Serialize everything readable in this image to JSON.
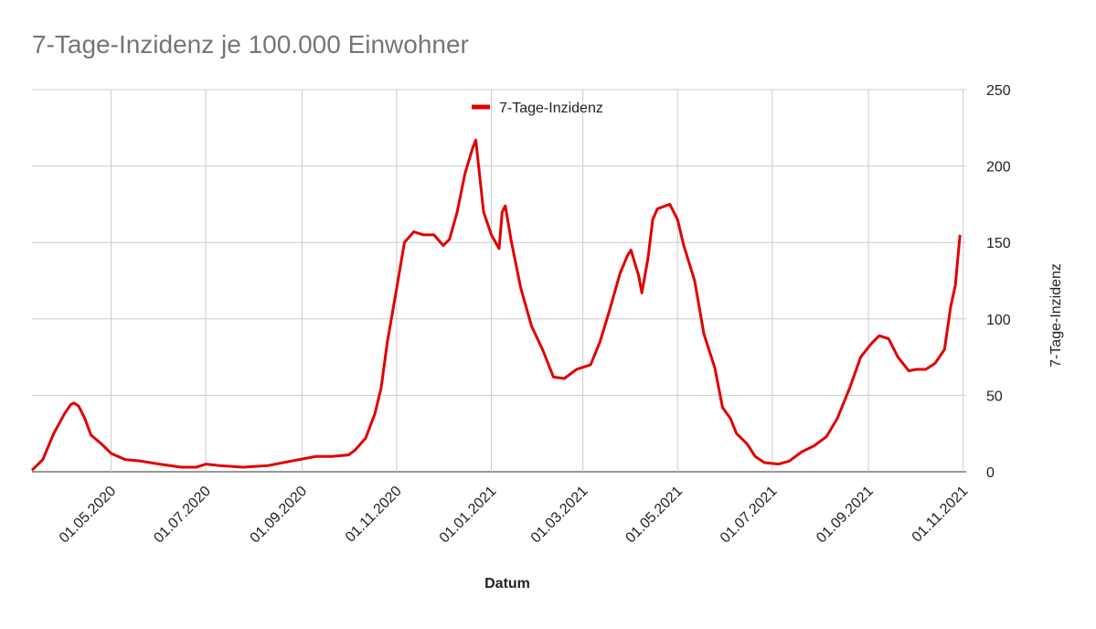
{
  "chart_data": {
    "type": "line",
    "title": "7-Tage-Inzidenz je 100.000 Einwohner",
    "x_label": "Datum",
    "y_label": "7-Tage-Inzidenz",
    "x": [
      "2020-03-11",
      "2020-03-18",
      "2020-03-25",
      "2020-04-01",
      "2020-04-05",
      "2020-04-07",
      "2020-04-10",
      "2020-04-14",
      "2020-04-18",
      "2020-04-25",
      "2020-05-01",
      "2020-05-10",
      "2020-05-20",
      "2020-06-01",
      "2020-06-15",
      "2020-06-25",
      "2020-07-01",
      "2020-07-10",
      "2020-07-25",
      "2020-08-10",
      "2020-08-25",
      "2020-09-10",
      "2020-09-20",
      "2020-10-01",
      "2020-10-05",
      "2020-10-12",
      "2020-10-18",
      "2020-10-22",
      "2020-10-26",
      "2020-11-01",
      "2020-11-06",
      "2020-11-12",
      "2020-11-18",
      "2020-11-25",
      "2020-12-01",
      "2020-12-05",
      "2020-12-10",
      "2020-12-15",
      "2020-12-20",
      "2020-12-22",
      "2020-12-27",
      "2021-01-01",
      "2021-01-06",
      "2021-01-08",
      "2021-01-10",
      "2021-01-14",
      "2021-01-20",
      "2021-01-27",
      "2021-02-03",
      "2021-02-10",
      "2021-02-17",
      "2021-02-25",
      "2021-03-06",
      "2021-03-12",
      "2021-03-18",
      "2021-03-25",
      "2021-03-30",
      "2021-04-01",
      "2021-04-06",
      "2021-04-08",
      "2021-04-12",
      "2021-04-15",
      "2021-04-18",
      "2021-04-26",
      "2021-05-01",
      "2021-05-05",
      "2021-05-12",
      "2021-05-18",
      "2021-05-25",
      "2021-05-30",
      "2021-06-04",
      "2021-06-08",
      "2021-06-15",
      "2021-06-20",
      "2021-06-26",
      "2021-07-05",
      "2021-07-12",
      "2021-07-20",
      "2021-07-28",
      "2021-08-05",
      "2021-08-12",
      "2021-08-20",
      "2021-08-27",
      "2021-09-03",
      "2021-09-08",
      "2021-09-14",
      "2021-09-20",
      "2021-09-27",
      "2021-10-02",
      "2021-10-08",
      "2021-10-14",
      "2021-10-20",
      "2021-10-24",
      "2021-10-27",
      "2021-10-30"
    ],
    "series": [
      {
        "name": "7-Tage-Inzidenz",
        "color": "#e00000",
        "values": [
          1,
          8,
          25,
          38,
          44,
          45,
          43,
          35,
          24,
          18,
          12,
          8,
          7,
          5,
          3,
          3,
          5,
          4,
          3,
          4,
          7,
          10,
          10,
          11,
          14,
          22,
          38,
          55,
          85,
          120,
          150,
          157,
          155,
          155,
          148,
          152,
          170,
          195,
          212,
          217,
          170,
          155,
          146,
          170,
          174,
          150,
          120,
          95,
          80,
          62,
          61,
          67,
          70,
          85,
          105,
          130,
          142,
          145,
          128,
          117,
          140,
          165,
          172,
          175,
          165,
          148,
          125,
          90,
          68,
          42,
          35,
          25,
          18,
          10,
          6,
          5,
          7,
          13,
          17,
          23,
          35,
          55,
          75,
          84,
          89,
          87,
          75,
          66,
          67,
          67,
          71,
          80,
          108,
          122,
          155
        ]
      }
    ],
    "xlim": [
      "2020-03-11",
      "2021-11-03"
    ],
    "xticks": [
      {
        "value": "2020-05-01",
        "label": "01.05.2020"
      },
      {
        "value": "2020-07-01",
        "label": "01.07.2020"
      },
      {
        "value": "2020-09-01",
        "label": "01.09.2020"
      },
      {
        "value": "2020-11-01",
        "label": "01.11.2020"
      },
      {
        "value": "2021-01-01",
        "label": "01.01.2021"
      },
      {
        "value": "2021-03-01",
        "label": "01.03.2021"
      },
      {
        "value": "2021-05-01",
        "label": "01.05.2021"
      },
      {
        "value": "2021-07-01",
        "label": "01.07.2021"
      },
      {
        "value": "2021-09-01",
        "label": "01.09.2021"
      },
      {
        "value": "2021-11-01",
        "label": "01.11.2021"
      }
    ],
    "ylim": [
      0,
      250
    ],
    "yticks": [
      0,
      50,
      100,
      150,
      200,
      250
    ],
    "grid": true,
    "legend": "top"
  }
}
